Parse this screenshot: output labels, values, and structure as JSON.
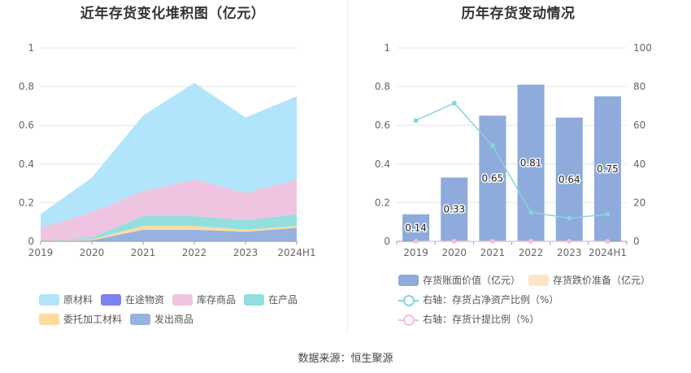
{
  "left_chart": {
    "title": "近年存货变化堆积图（亿元）",
    "legend": [
      {
        "name": "原材料",
        "color": "#b2e4fb"
      },
      {
        "name": "在途物资",
        "color": "#7b83ef"
      },
      {
        "name": "库存商品",
        "color": "#efc4e0"
      },
      {
        "name": "在产品",
        "color": "#93dfdf"
      },
      {
        "name": "委托加工材料",
        "color": "#fbdca0"
      },
      {
        "name": "发出商品",
        "color": "#97b2e0"
      }
    ]
  },
  "right_chart": {
    "title": "历年存货变动情况",
    "legend": [
      {
        "name": "存货账面价值（亿元）",
        "color": "#8eabdc",
        "kind": "bar"
      },
      {
        "name": "存货跌价准备（亿元）",
        "color": "#fde6c3",
        "kind": "bar"
      },
      {
        "name": "右轴：存货占净资产比例（%）",
        "color": "#86d6dc",
        "kind": "line"
      },
      {
        "name": "右轴：存货计提比例（%）",
        "color": "#efbfdc",
        "kind": "line"
      }
    ]
  },
  "chart_data": [
    {
      "type": "area",
      "title": "近年存货变化堆积图（亿元）",
      "categories": [
        "2019",
        "2020",
        "2021",
        "2022",
        "2023",
        "2024H1"
      ],
      "ylim": [
        0,
        1
      ],
      "yticks": [
        "0",
        "0.2",
        "0.4",
        "0.6",
        "0.8",
        "1"
      ],
      "stacked": true,
      "grid": true,
      "legend_position": "bottom",
      "series": [
        {
          "name": "发出商品",
          "color": "#97b2e0",
          "values": [
            0,
            0.005,
            0.06,
            0.06,
            0.05,
            0.07
          ]
        },
        {
          "name": "委托加工材料",
          "color": "#fbdca0",
          "values": [
            0,
            0.005,
            0.02,
            0.02,
            0.01,
            0.01
          ]
        },
        {
          "name": "在产品",
          "color": "#93dfdf",
          "values": [
            0,
            0.01,
            0.05,
            0.05,
            0.05,
            0.06
          ]
        },
        {
          "name": "库存商品",
          "color": "#efc4e0",
          "values": [
            0.07,
            0.13,
            0.13,
            0.19,
            0.14,
            0.18
          ]
        },
        {
          "name": "在途物资",
          "color": "#7b83ef",
          "values": [
            0,
            0,
            0,
            0,
            0,
            0
          ]
        },
        {
          "name": "原材料",
          "color": "#b2e4fb",
          "values": [
            0.07,
            0.18,
            0.39,
            0.5,
            0.39,
            0.43
          ]
        }
      ]
    },
    {
      "type": "bar",
      "title": "历年存货变动情况",
      "categories": [
        "2019",
        "2020",
        "2021",
        "2022",
        "2023",
        "2024H1"
      ],
      "ylim": [
        0,
        1
      ],
      "yticks": [
        "0",
        "0.2",
        "0.4",
        "0.6",
        "0.8",
        "1"
      ],
      "y2lim": [
        0,
        100
      ],
      "y2ticks": [
        "0",
        "20",
        "40",
        "60",
        "80",
        "100"
      ],
      "grid": true,
      "legend_position": "bottom",
      "series": [
        {
          "name": "存货账面价值（亿元）",
          "kind": "bar",
          "color": "#8eabdc",
          "values": [
            0.14,
            0.33,
            0.65,
            0.81,
            0.64,
            0.75
          ],
          "labels": [
            "0.14",
            "0.33",
            "0.65",
            "0.81",
            "0.64",
            "0.75"
          ]
        },
        {
          "name": "存货跌价准备（亿元）",
          "kind": "bar",
          "color": "#fde6c3",
          "values": [
            0,
            0,
            0,
            0,
            0,
            0
          ]
        },
        {
          "name": "右轴：存货占净资产比例（%）",
          "kind": "line",
          "axis": "right",
          "color": "#86d6dc",
          "values": [
            62.5,
            71.5,
            49.5,
            15,
            12,
            14
          ]
        },
        {
          "name": "右轴：存货计提比例（%）",
          "kind": "line",
          "axis": "right",
          "color": "#efbfdc",
          "values": [
            0,
            0,
            0,
            0,
            0,
            0
          ]
        }
      ]
    }
  ],
  "source": "数据来源：恒生聚源"
}
